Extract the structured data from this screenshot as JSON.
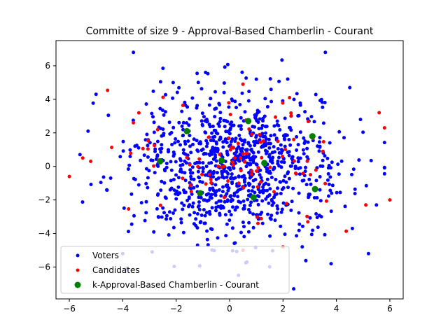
{
  "chart_data": {
    "type": "scatter",
    "title": "Committe of size 9 - Approval-Based Chamberlin - Courant",
    "xlabel": "",
    "ylabel": "",
    "xlim": [
      -6.5,
      6.5
    ],
    "ylim": [
      -7.9,
      7.5
    ],
    "xticks": [
      -6,
      -4,
      -2,
      0,
      2,
      4,
      6
    ],
    "yticks": [
      -6,
      -4,
      -2,
      0,
      2,
      4,
      6
    ],
    "grid": false,
    "legend_position": "lower-left",
    "colors": {
      "voters": "#0000ff",
      "candidates": "#ff0000",
      "committee": "#008000"
    },
    "series": [
      {
        "name": "Voters",
        "color": "#0000ff",
        "marker": "small-dot",
        "generator": "gaussian",
        "count": 1000,
        "center": [
          0.2,
          0.0
        ],
        "spread": [
          1.9,
          2.1
        ],
        "seed": 7,
        "outliers": [
          [
            -3.6,
            6.8
          ],
          [
            2.4,
            -7.3
          ],
          [
            -4.0,
            -5.2
          ],
          [
            -2.9,
            -5.1
          ],
          [
            -1.2,
            -4.7
          ],
          [
            5.2,
            -5.2
          ],
          [
            3.8,
            -5.8
          ],
          [
            -5.0,
            4.3
          ],
          [
            4.5,
            4.7
          ],
          [
            -5.3,
            2.1
          ],
          [
            -5.6,
            0.7
          ],
          [
            5.5,
            -2.3
          ],
          [
            -4.6,
            -1.4
          ],
          [
            4.9,
            2.8
          ],
          [
            -0.9,
            5.6
          ],
          [
            1.0,
            5.2
          ]
        ]
      },
      {
        "name": "Candidates",
        "color": "#ff0000",
        "marker": "small-dot",
        "generator": "gaussian",
        "count": 95,
        "center": [
          0.2,
          0.2
        ],
        "spread": [
          2.0,
          1.9
        ],
        "seed": 13,
        "outliers": [
          [
            -6.0,
            -0.6
          ],
          [
            6.0,
            -2.0
          ],
          [
            5.6,
            3.2
          ],
          [
            5.8,
            2.3
          ],
          [
            -5.5,
            0.5
          ],
          [
            -5.2,
            0.3
          ],
          [
            -3.6,
            2.6
          ],
          [
            5.1,
            -2.3
          ],
          [
            0.5,
            4.9
          ],
          [
            0.5,
            -5.0
          ],
          [
            2.0,
            -4.8
          ],
          [
            2.3,
            3.0
          ]
        ]
      },
      {
        "name": "k-Approval-Based Chamberlin - Courant",
        "color": "#008000",
        "marker": "large-dot",
        "points": [
          [
            -1.6,
            2.1
          ],
          [
            -2.6,
            0.3
          ],
          [
            -1.1,
            -1.6
          ],
          [
            -0.3,
            0.35
          ],
          [
            0.7,
            2.7
          ],
          [
            1.3,
            0.2
          ],
          [
            0.9,
            -1.85
          ],
          [
            3.1,
            1.8
          ],
          [
            3.2,
            -1.35
          ]
        ]
      }
    ]
  }
}
